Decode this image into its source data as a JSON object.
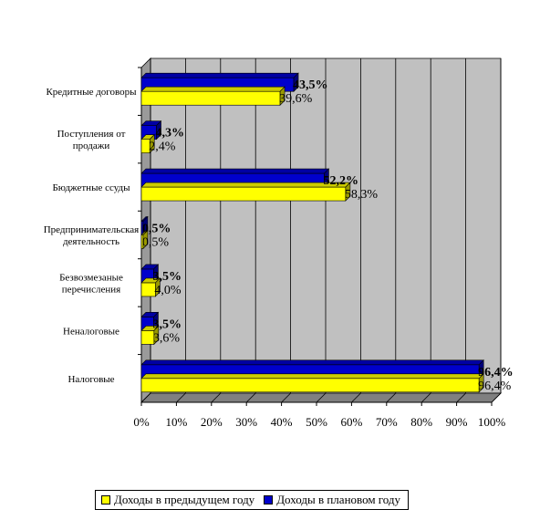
{
  "chart_data": {
    "type": "bar",
    "orientation": "horizontal",
    "three_d": true,
    "categories": [
      [
        "Кредитные договоры"
      ],
      [
        "Поступления от",
        "продажи"
      ],
      [
        "Бюджетные ссуды"
      ],
      [
        "Предпринимательская",
        "деятельность"
      ],
      [
        "Безвозмезаные",
        "перечисления"
      ],
      [
        "Неналоговые"
      ],
      [
        "Налоговые"
      ]
    ],
    "series": [
      {
        "name": "Доходы в предыдущем году",
        "color": "#ffff00",
        "values": [
          39.6,
          2.4,
          58.3,
          0.5,
          4.0,
          3.6,
          96.4
        ],
        "labels": [
          "39,6%",
          "2,4%",
          "58,3%",
          "0,5%",
          "4,0%",
          "3,6%",
          "96,4%"
        ]
      },
      {
        "name": "Доходы в плановом году",
        "color": "#0000cc",
        "values": [
          43.5,
          4.3,
          52.2,
          0.5,
          3.5,
          3.5,
          96.4
        ],
        "labels": [
          "43,5%",
          "4,3%",
          "52,2%",
          "0,5%",
          "3,5%",
          "3,5%",
          "96,4%"
        ]
      }
    ],
    "xticks": [
      "0%",
      "10%",
      "20%",
      "30%",
      "40%",
      "50%",
      "60%",
      "70%",
      "80%",
      "90%",
      "100%"
    ],
    "xlim": [
      0,
      100
    ],
    "grid": true,
    "legend_position": "bottom",
    "plot_background": "#c0c0c0"
  }
}
